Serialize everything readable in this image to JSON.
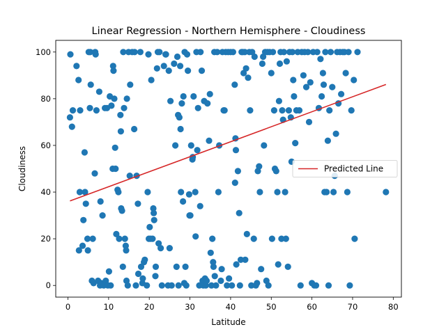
{
  "chart_data": {
    "type": "scatter",
    "title": "Linear Regression - Northern Hemisphere - Cloudiness",
    "xlabel": "Latitude",
    "ylabel": "Cloudiness",
    "xlim": [
      -3,
      82
    ],
    "ylim": [
      -5,
      105
    ],
    "xticks": [
      0,
      10,
      20,
      30,
      40,
      50,
      60,
      70,
      80
    ],
    "yticks": [
      0,
      20,
      40,
      60,
      80,
      100
    ],
    "grid": false,
    "legend_placement": "center-right",
    "legend": [
      "Predicted Line"
    ],
    "colors": {
      "points": "#1f77b4",
      "line": "#d62728"
    },
    "regression_line": {
      "name": "Predicted Line",
      "x": [
        0.5,
        78.2
      ],
      "y": [
        36.2,
        86.1
      ]
    },
    "points": [
      [
        0.6,
        99
      ],
      [
        0.5,
        72
      ],
      [
        1,
        68
      ],
      [
        1.2,
        75
      ],
      [
        2.1,
        94
      ],
      [
        2.6,
        88
      ],
      [
        2.7,
        15
      ],
      [
        2.9,
        40
      ],
      [
        3,
        75
      ],
      [
        3.6,
        17
      ],
      [
        3.8,
        28
      ],
      [
        4.1,
        57
      ],
      [
        4.2,
        40
      ],
      [
        4.4,
        35
      ],
      [
        4.8,
        20
      ],
      [
        4.9,
        15
      ],
      [
        5.1,
        100
      ],
      [
        5.5,
        100
      ],
      [
        5.4,
        76
      ],
      [
        5.6,
        86
      ],
      [
        5.9,
        2
      ],
      [
        6.1,
        20
      ],
      [
        6.3,
        1
      ],
      [
        6.6,
        48
      ],
      [
        6.7,
        100
      ],
      [
        6.8,
        99
      ],
      [
        7,
        75
      ],
      [
        7.4,
        2
      ],
      [
        7.7,
        83
      ],
      [
        7.9,
        0
      ],
      [
        8,
        36
      ],
      [
        8.2,
        1
      ],
      [
        8.5,
        30
      ],
      [
        8.8,
        0
      ],
      [
        9.1,
        76
      ],
      [
        9.3,
        2
      ],
      [
        9.6,
        76
      ],
      [
        9.8,
        0
      ],
      [
        10.1,
        6
      ],
      [
        10.3,
        81
      ],
      [
        10.5,
        0
      ],
      [
        10.7,
        77
      ],
      [
        11,
        50
      ],
      [
        11.1,
        94
      ],
      [
        11.2,
        92
      ],
      [
        11.4,
        80
      ],
      [
        11.6,
        59
      ],
      [
        11.7,
        50
      ],
      [
        11.9,
        22
      ],
      [
        12.2,
        41
      ],
      [
        12.4,
        40
      ],
      [
        12.6,
        20
      ],
      [
        12.9,
        73
      ],
      [
        13,
        66
      ],
      [
        13.1,
        33
      ],
      [
        13.3,
        32
      ],
      [
        13.5,
        8
      ],
      [
        13.6,
        100
      ],
      [
        13.8,
        76
      ],
      [
        14,
        20
      ],
      [
        14.2,
        17
      ],
      [
        14.3,
        15
      ],
      [
        14.4,
        2
      ],
      [
        14.5,
        80
      ],
      [
        14.7,
        0
      ],
      [
        14.9,
        100
      ],
      [
        15.2,
        47
      ],
      [
        15.3,
        86
      ],
      [
        16.4,
        100
      ],
      [
        15.8,
        100
      ],
      [
        16.3,
        67
      ],
      [
        16.7,
        0
      ],
      [
        16.9,
        47
      ],
      [
        17.2,
        35
      ],
      [
        17.3,
        5
      ],
      [
        17.8,
        100
      ],
      [
        18,
        8
      ],
      [
        18.3,
        1
      ],
      [
        18.4,
        3
      ],
      [
        18.7,
        10
      ],
      [
        18.9,
        11
      ],
      [
        19.4,
        0
      ],
      [
        19.6,
        40
      ],
      [
        19.8,
        99
      ],
      [
        19.9,
        20
      ],
      [
        20.1,
        25
      ],
      [
        20.3,
        20
      ],
      [
        20.5,
        88
      ],
      [
        20.8,
        20
      ],
      [
        21,
        33
      ],
      [
        21.1,
        31
      ],
      [
        21.2,
        28
      ],
      [
        21.5,
        4
      ],
      [
        21.6,
        8
      ],
      [
        21.9,
        93
      ],
      [
        22.1,
        100
      ],
      [
        22.3,
        18
      ],
      [
        22.5,
        100
      ],
      [
        22.8,
        16
      ],
      [
        23.1,
        0
      ],
      [
        23.6,
        94
      ],
      [
        24,
        99
      ],
      [
        24.1,
        99
      ],
      [
        24.6,
        0
      ],
      [
        24.8,
        92
      ],
      [
        25,
        16
      ],
      [
        25.2,
        79
      ],
      [
        25.5,
        0
      ],
      [
        26.1,
        95
      ],
      [
        26.4,
        60
      ],
      [
        26.7,
        8
      ],
      [
        26.9,
        98
      ],
      [
        27.1,
        73
      ],
      [
        27.2,
        0
      ],
      [
        27.4,
        72
      ],
      [
        27.6,
        94
      ],
      [
        27.7,
        67
      ],
      [
        27.8,
        40
      ],
      [
        28,
        78
      ],
      [
        28.3,
        36
      ],
      [
        28.4,
        81
      ],
      [
        28.6,
        1
      ],
      [
        28.7,
        100
      ],
      [
        28.9,
        8
      ],
      [
        29.1,
        0
      ],
      [
        29.3,
        99
      ],
      [
        29.5,
        92
      ],
      [
        29.8,
        39
      ],
      [
        29.9,
        30
      ],
      [
        30.1,
        30
      ],
      [
        30.3,
        60
      ],
      [
        30.6,
        54
      ],
      [
        30.7,
        55
      ],
      [
        30.9,
        81
      ],
      [
        31.3,
        40
      ],
      [
        31.4,
        21
      ],
      [
        31.6,
        100
      ],
      [
        31.8,
        58
      ],
      [
        32,
        76
      ],
      [
        32.3,
        0
      ],
      [
        32.5,
        34
      ],
      [
        32.6,
        100
      ],
      [
        32.9,
        92
      ],
      [
        33.1,
        2
      ],
      [
        33.3,
        0
      ],
      [
        33.5,
        79
      ],
      [
        33.7,
        3
      ],
      [
        33.9,
        0
      ],
      [
        34.1,
        2
      ],
      [
        34.3,
        78
      ],
      [
        34.7,
        62
      ],
      [
        34.9,
        82
      ],
      [
        35.1,
        14
      ],
      [
        35.3,
        0
      ],
      [
        35.5,
        20
      ],
      [
        35.7,
        10
      ],
      [
        35.8,
        8
      ],
      [
        36,
        100
      ],
      [
        36.1,
        4
      ],
      [
        36.4,
        0
      ],
      [
        36.7,
        100
      ],
      [
        37,
        40
      ],
      [
        37.2,
        60
      ],
      [
        37.6,
        2
      ],
      [
        37.8,
        7
      ],
      [
        38,
        100
      ],
      [
        38.3,
        75
      ],
      [
        38.5,
        75
      ],
      [
        38.8,
        100
      ],
      [
        39.1,
        0
      ],
      [
        39.4,
        100
      ],
      [
        39.6,
        3
      ],
      [
        40,
        100
      ],
      [
        40.3,
        0
      ],
      [
        40.6,
        100
      ],
      [
        41,
        86
      ],
      [
        41.1,
        44
      ],
      [
        41.2,
        63
      ],
      [
        41.3,
        58
      ],
      [
        41.4,
        9
      ],
      [
        41.8,
        49
      ],
      [
        42.1,
        31
      ],
      [
        42.3,
        0
      ],
      [
        42.5,
        11
      ],
      [
        42.7,
        100
      ],
      [
        43,
        100
      ],
      [
        43.2,
        91
      ],
      [
        43.5,
        100
      ],
      [
        43.6,
        11
      ],
      [
        43.8,
        93
      ],
      [
        44,
        22
      ],
      [
        44.3,
        89
      ],
      [
        44.6,
        100
      ],
      [
        44.8,
        75
      ],
      [
        45.1,
        0
      ],
      [
        45.3,
        100
      ],
      [
        45.7,
        20
      ],
      [
        45.9,
        98
      ],
      [
        46.2,
        0
      ],
      [
        46.5,
        1
      ],
      [
        46.7,
        49
      ],
      [
        47,
        51
      ],
      [
        47.2,
        40
      ],
      [
        47.5,
        7
      ],
      [
        47.8,
        95
      ],
      [
        48,
        98
      ],
      [
        48.2,
        60
      ],
      [
        48.5,
        100
      ],
      [
        48.8,
        2
      ],
      [
        49.1,
        100
      ],
      [
        49.3,
        0
      ],
      [
        49.6,
        100
      ],
      [
        50,
        91
      ],
      [
        50.2,
        20
      ],
      [
        50.4,
        100
      ],
      [
        50.7,
        75
      ],
      [
        50.9,
        50
      ],
      [
        51.2,
        49
      ],
      [
        51.5,
        40
      ],
      [
        51.7,
        9
      ],
      [
        51.9,
        79
      ],
      [
        52.1,
        95
      ],
      [
        52.3,
        100
      ],
      [
        52.5,
        20
      ],
      [
        52.7,
        75
      ],
      [
        52.9,
        71
      ],
      [
        53.1,
        100
      ],
      [
        53.4,
        40
      ],
      [
        53.6,
        20
      ],
      [
        53.8,
        96
      ],
      [
        54.1,
        8
      ],
      [
        54.3,
        75
      ],
      [
        54.5,
        100
      ],
      [
        54.8,
        72
      ],
      [
        55,
        53
      ],
      [
        55.2,
        100
      ],
      [
        55.4,
        88
      ],
      [
        55.6,
        81
      ],
      [
        55.9,
        61
      ],
      [
        56.2,
        75
      ],
      [
        56.5,
        100
      ],
      [
        56.9,
        75
      ],
      [
        57.2,
        0
      ],
      [
        57.5,
        100
      ],
      [
        57.9,
        90
      ],
      [
        58.2,
        100
      ],
      [
        58.6,
        85
      ],
      [
        59,
        100
      ],
      [
        59.3,
        70
      ],
      [
        59.6,
        87
      ],
      [
        60,
        1
      ],
      [
        60.3,
        100
      ],
      [
        60.6,
        0
      ],
      [
        61,
        0
      ],
      [
        61.3,
        100
      ],
      [
        61.7,
        76
      ],
      [
        62.1,
        97
      ],
      [
        62.4,
        81
      ],
      [
        62.7,
        91
      ],
      [
        62.9,
        86
      ],
      [
        63.1,
        40
      ],
      [
        63.3,
        100
      ],
      [
        63.6,
        40
      ],
      [
        63.9,
        62
      ],
      [
        64.1,
        0
      ],
      [
        64.3,
        75
      ],
      [
        64.6,
        100
      ],
      [
        65,
        85
      ],
      [
        65.3,
        40
      ],
      [
        65.6,
        47
      ],
      [
        65.9,
        65
      ],
      [
        66.2,
        100
      ],
      [
        66.5,
        78
      ],
      [
        66.9,
        100
      ],
      [
        67.2,
        82
      ],
      [
        67.6,
        100
      ],
      [
        68,
        100
      ],
      [
        68.3,
        91
      ],
      [
        68.7,
        40
      ],
      [
        69,
        100
      ],
      [
        69.3,
        0
      ],
      [
        69.7,
        75
      ],
      [
        70.3,
        88
      ],
      [
        70.5,
        20
      ],
      [
        71.2,
        100
      ],
      [
        78.2,
        40
      ]
    ]
  }
}
